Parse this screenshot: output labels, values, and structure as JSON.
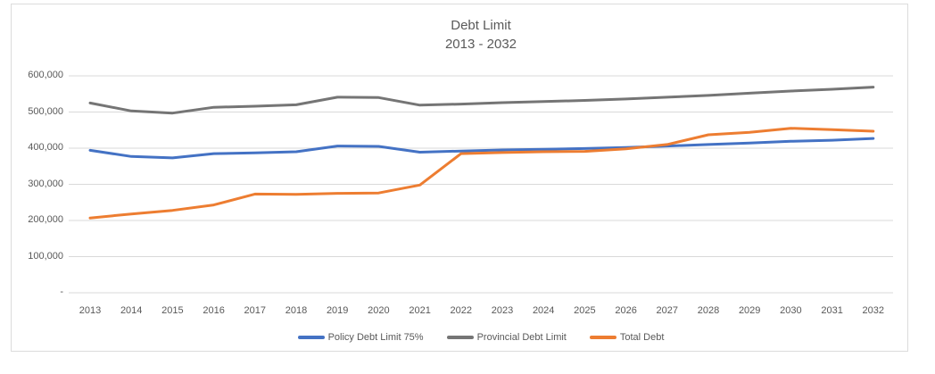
{
  "frame": {
    "background": "#ffffff",
    "border_color": "#dcdcdc"
  },
  "chart_data": {
    "type": "line",
    "title": "Debt Limit",
    "subtitle": "2013 - 2032",
    "text_color": "#595959",
    "gridline_color": "#d9d9d9",
    "grid": true,
    "legend_position": "bottom",
    "x": [
      2013,
      2014,
      2015,
      2016,
      2017,
      2018,
      2019,
      2020,
      2021,
      2022,
      2023,
      2024,
      2025,
      2026,
      2027,
      2028,
      2029,
      2030,
      2031,
      2032
    ],
    "y_axis": {
      "min": 0,
      "max": 600000,
      "tick_values": [
        600000,
        500000,
        400000,
        300000,
        200000,
        100000,
        0
      ],
      "tick_labels": [
        "600,000",
        "500,000",
        "400,000",
        "300,000",
        "200,000",
        "100,000",
        "-"
      ]
    },
    "series": [
      {
        "name": "Policy Debt Limit 75%",
        "color": "#4472C4",
        "values": [
          394000,
          377000,
          373000,
          385000,
          387000,
          390000,
          406000,
          405000,
          389000,
          392000,
          395000,
          397000,
          399000,
          402000,
          406000,
          410000,
          414000,
          419000,
          422000,
          427000
        ]
      },
      {
        "name": "Provincial Debt Limit",
        "color": "#757575",
        "values": [
          525000,
          503000,
          497000,
          513000,
          516000,
          520000,
          541000,
          540000,
          519000,
          522000,
          526000,
          529000,
          532000,
          536000,
          541000,
          546000,
          552000,
          558000,
          563000,
          569000
        ]
      },
      {
        "name": "Total Debt",
        "color": "#ED7D31",
        "values": [
          207000,
          218000,
          228000,
          243000,
          273000,
          272000,
          275000,
          276000,
          298000,
          385000,
          388000,
          390000,
          391000,
          398000,
          410000,
          437000,
          444000,
          455000,
          451000,
          447000
        ]
      }
    ]
  }
}
